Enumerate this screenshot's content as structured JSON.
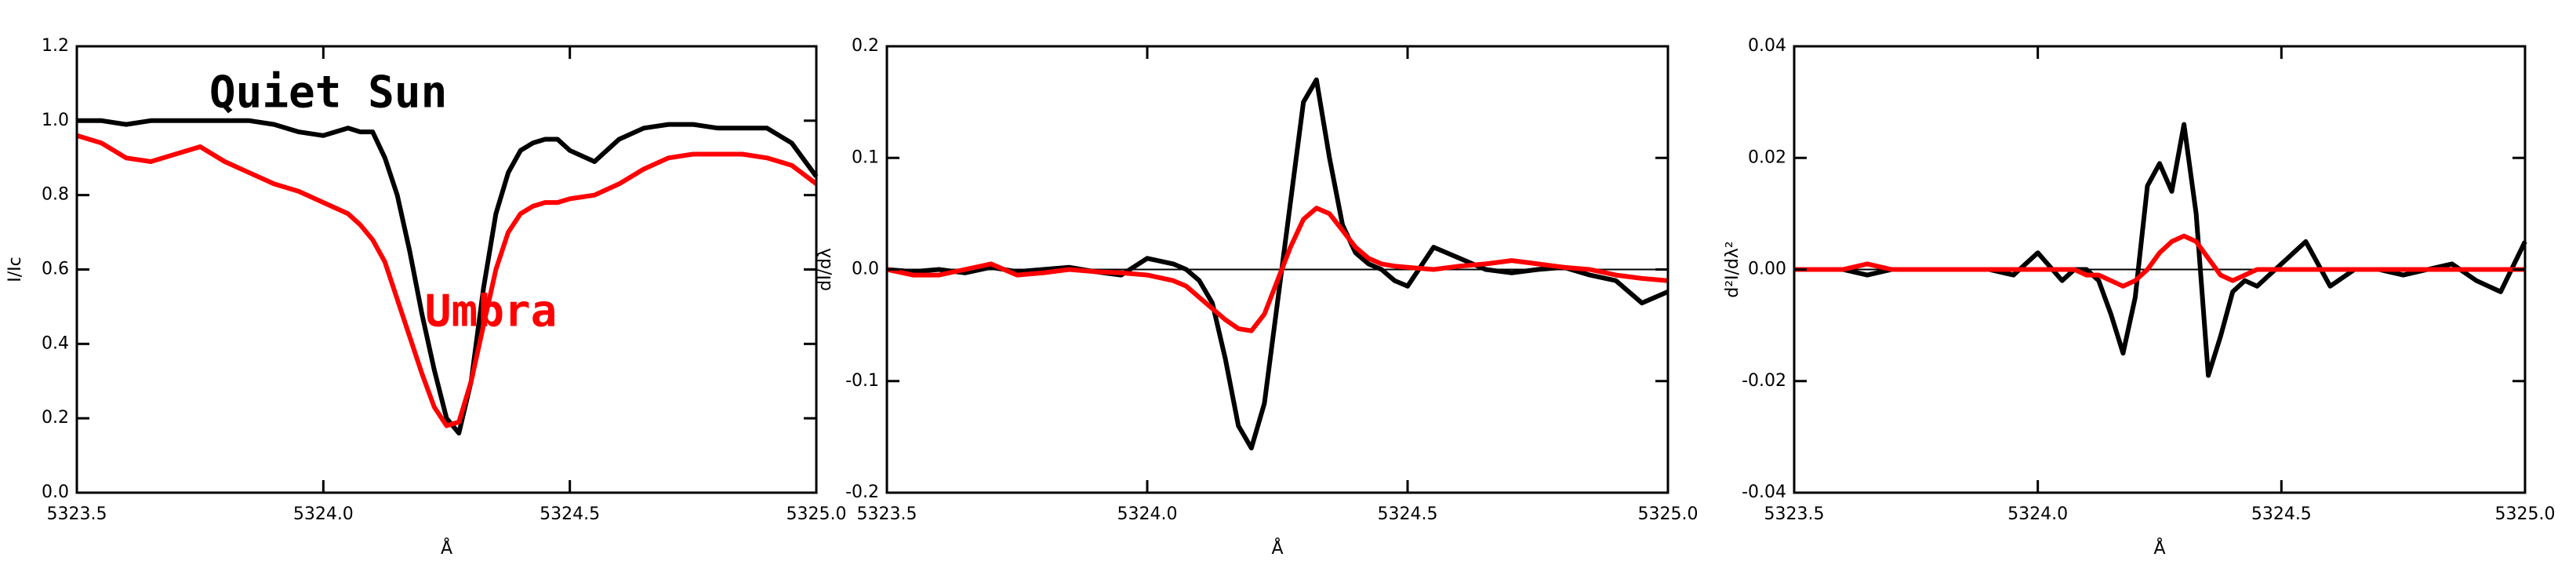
{
  "chart_data": [
    {
      "type": "line",
      "ylabel": "I/Ic",
      "xlabel": "Å",
      "x": [
        5323.5,
        5323.55,
        5323.6,
        5323.65,
        5323.7,
        5323.75,
        5323.8,
        5323.85,
        5323.9,
        5323.95,
        5324.0,
        5324.05,
        5324.075,
        5324.1,
        5324.125,
        5324.15,
        5324.175,
        5324.2,
        5324.225,
        5324.25,
        5324.275,
        5324.3,
        5324.325,
        5324.35,
        5324.375,
        5324.4,
        5324.425,
        5324.45,
        5324.475,
        5324.5,
        5324.55,
        5324.6,
        5324.65,
        5324.7,
        5324.75,
        5324.8,
        5324.85,
        5324.9,
        5324.95,
        5325.0
      ],
      "series": [
        {
          "name": "Quiet Sun",
          "color": "#000000",
          "values": [
            1.0,
            1.0,
            0.99,
            1.0,
            1.0,
            1.0,
            1.0,
            1.0,
            0.99,
            0.97,
            0.96,
            0.98,
            0.97,
            0.97,
            0.9,
            0.8,
            0.65,
            0.48,
            0.33,
            0.2,
            0.16,
            0.3,
            0.55,
            0.75,
            0.86,
            0.92,
            0.94,
            0.95,
            0.95,
            0.92,
            0.89,
            0.95,
            0.98,
            0.99,
            0.99,
            0.98,
            0.98,
            0.98,
            0.94,
            0.85
          ]
        },
        {
          "name": "Umbra",
          "color": "#ff0000",
          "values": [
            0.96,
            0.94,
            0.9,
            0.89,
            0.91,
            0.93,
            0.89,
            0.86,
            0.83,
            0.81,
            0.78,
            0.75,
            0.72,
            0.68,
            0.62,
            0.52,
            0.42,
            0.32,
            0.23,
            0.18,
            0.19,
            0.3,
            0.45,
            0.6,
            0.7,
            0.75,
            0.77,
            0.78,
            0.78,
            0.79,
            0.8,
            0.83,
            0.87,
            0.9,
            0.91,
            0.91,
            0.91,
            0.9,
            0.88,
            0.83
          ]
        }
      ],
      "xlim": [
        5323.5,
        5325.0
      ],
      "ylim": [
        0.0,
        1.2
      ],
      "xticks": [
        {
          "value": 5323.5,
          "label": "5323.5"
        },
        {
          "value": 5324.0,
          "label": "5324.0"
        },
        {
          "value": 5324.5,
          "label": "5324.5"
        },
        {
          "value": 5325.0,
          "label": "5325.0"
        }
      ],
      "yticks": [
        {
          "value": 0.0,
          "label": "0.0"
        },
        {
          "value": 0.2,
          "label": "0.2"
        },
        {
          "value": 0.4,
          "label": "0.4"
        },
        {
          "value": 0.6,
          "label": "0.6"
        },
        {
          "value": 0.8,
          "label": "0.8"
        },
        {
          "value": 1.0,
          "label": "1.0"
        },
        {
          "value": 1.2,
          "label": "1.2"
        }
      ],
      "zero_line": false
    },
    {
      "type": "line",
      "ylabel": "dI/dλ",
      "xlabel": "Å",
      "x": [
        5323.5,
        5323.55,
        5323.6,
        5323.65,
        5323.7,
        5323.75,
        5323.8,
        5323.85,
        5323.9,
        5323.95,
        5324.0,
        5324.05,
        5324.075,
        5324.1,
        5324.125,
        5324.15,
        5324.175,
        5324.2,
        5324.225,
        5324.25,
        5324.275,
        5324.3,
        5324.325,
        5324.35,
        5324.375,
        5324.4,
        5324.425,
        5324.45,
        5324.475,
        5324.5,
        5324.55,
        5324.6,
        5324.65,
        5324.7,
        5324.75,
        5324.8,
        5324.85,
        5324.9,
        5324.95,
        5325.0
      ],
      "series": [
        {
          "color": "#000000",
          "values": [
            0.0,
            -0.002,
            0.0,
            -0.003,
            0.002,
            -0.002,
            0.0,
            0.002,
            -0.002,
            -0.005,
            0.01,
            0.005,
            0.0,
            -0.01,
            -0.03,
            -0.08,
            -0.14,
            -0.16,
            -0.12,
            -0.03,
            0.06,
            0.15,
            0.17,
            0.1,
            0.04,
            0.015,
            0.005,
            0.0,
            -0.01,
            -0.015,
            0.02,
            0.01,
            0.0,
            -0.003,
            0.0,
            0.002,
            -0.005,
            -0.01,
            -0.03,
            -0.02
          ]
        },
        {
          "color": "#ff0000",
          "values": [
            0.0,
            -0.005,
            -0.005,
            0.0,
            0.005,
            -0.005,
            -0.003,
            0.0,
            -0.002,
            -0.003,
            -0.005,
            -0.01,
            -0.015,
            -0.025,
            -0.035,
            -0.045,
            -0.053,
            -0.055,
            -0.04,
            -0.01,
            0.02,
            0.045,
            0.055,
            0.05,
            0.035,
            0.02,
            0.01,
            0.005,
            0.003,
            0.002,
            0.0,
            0.003,
            0.005,
            0.008,
            0.005,
            0.002,
            0.0,
            -0.005,
            -0.008,
            -0.01
          ]
        }
      ],
      "xlim": [
        5323.5,
        5325.0
      ],
      "ylim": [
        -0.2,
        0.2
      ],
      "xticks": [
        {
          "value": 5323.5,
          "label": "5323.5"
        },
        {
          "value": 5324.0,
          "label": "5324.0"
        },
        {
          "value": 5324.5,
          "label": "5324.5"
        },
        {
          "value": 5325.0,
          "label": "5325.0"
        }
      ],
      "yticks": [
        {
          "value": -0.2,
          "label": "-0.2"
        },
        {
          "value": -0.1,
          "label": "-0.1"
        },
        {
          "value": 0.0,
          "label": "0.0"
        },
        {
          "value": 0.1,
          "label": "0.1"
        },
        {
          "value": 0.2,
          "label": "0.2"
        }
      ],
      "zero_line": true
    },
    {
      "type": "line",
      "ylabel": "d²I/dλ²",
      "xlabel": "Å",
      "x": [
        5323.5,
        5323.55,
        5323.6,
        5323.65,
        5323.7,
        5323.75,
        5323.8,
        5323.85,
        5323.9,
        5323.95,
        5324.0,
        5324.05,
        5324.075,
        5324.1,
        5324.125,
        5324.15,
        5324.175,
        5324.2,
        5324.225,
        5324.25,
        5324.275,
        5324.3,
        5324.325,
        5324.35,
        5324.375,
        5324.4,
        5324.425,
        5324.45,
        5324.475,
        5324.5,
        5324.55,
        5324.6,
        5324.65,
        5324.7,
        5324.75,
        5324.8,
        5324.85,
        5324.9,
        5324.95,
        5325.0
      ],
      "series": [
        {
          "color": "#000000",
          "values": [
            0.0,
            0.0,
            0.0,
            -0.001,
            0.0,
            0.0,
            0.0,
            0.0,
            0.0,
            -0.001,
            0.003,
            -0.002,
            0.0,
            0.0,
            -0.002,
            -0.008,
            -0.015,
            -0.005,
            0.015,
            0.019,
            0.014,
            0.026,
            0.01,
            -0.019,
            -0.012,
            -0.004,
            -0.002,
            -0.003,
            -0.001,
            0.001,
            0.005,
            -0.003,
            0.0,
            0.0,
            -0.001,
            0.0,
            0.001,
            -0.002,
            -0.004,
            0.005
          ]
        },
        {
          "color": "#ff0000",
          "values": [
            0.0,
            0.0,
            0.0,
            0.001,
            0.0,
            0.0,
            0.0,
            0.0,
            0.0,
            0.0,
            0.0,
            0.0,
            0.0,
            -0.001,
            -0.001,
            -0.002,
            -0.003,
            -0.002,
            0.0,
            0.003,
            0.005,
            0.006,
            0.005,
            0.002,
            -0.001,
            -0.002,
            -0.001,
            0.0,
            0.0,
            0.0,
            0.0,
            0.0,
            0.0,
            0.0,
            0.0,
            0.0,
            0.0,
            0.0,
            0.0,
            0.0
          ]
        }
      ],
      "xlim": [
        5323.5,
        5325.0
      ],
      "ylim": [
        -0.04,
        0.04
      ],
      "xticks": [
        {
          "value": 5323.5,
          "label": "5323.5"
        },
        {
          "value": 5324.0,
          "label": "5324.0"
        },
        {
          "value": 5324.5,
          "label": "5324.5"
        },
        {
          "value": 5325.0,
          "label": "5325.0"
        }
      ],
      "yticks": [
        {
          "value": -0.04,
          "label": "-0.04"
        },
        {
          "value": -0.02,
          "label": "-0.02"
        },
        {
          "value": 0.0,
          "label": "0.00"
        },
        {
          "value": 0.02,
          "label": "0.02"
        },
        {
          "value": 0.04,
          "label": "0.04"
        }
      ],
      "zero_line": true
    }
  ]
}
